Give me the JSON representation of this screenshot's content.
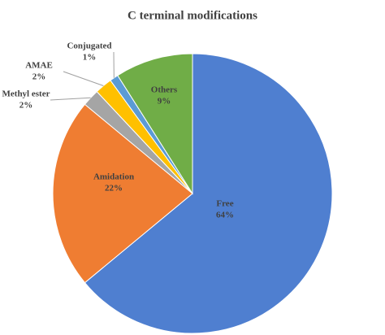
{
  "chart_data": {
    "type": "pie",
    "title": "C terminal modifications",
    "categories": [
      "Free",
      "Amidation",
      "Methyl ester",
      "AMAE",
      "Conjugated",
      "Others"
    ],
    "values": [
      64,
      22,
      2,
      2,
      1,
      9
    ],
    "value_labels": [
      "64%",
      "22%",
      "2%",
      "2%",
      "1%",
      "9%"
    ],
    "colors": [
      "#4f7fd0",
      "#ef7d32",
      "#a5a5a5",
      "#ffc000",
      "#5b9bd5",
      "#70ad47"
    ]
  }
}
